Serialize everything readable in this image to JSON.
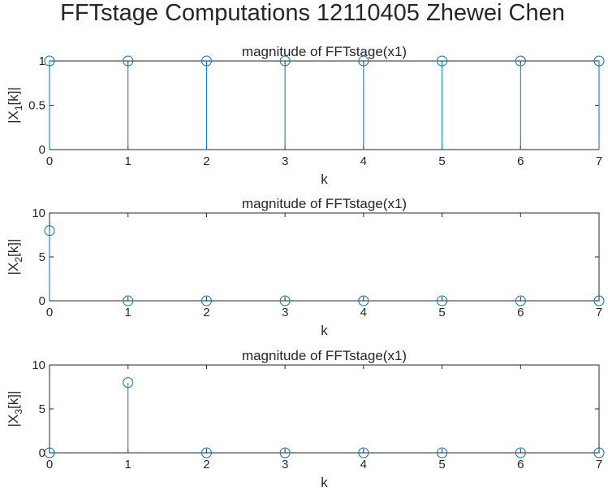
{
  "figure": {
    "title": "FFTstage Computations 12110405 Zhewei Chen"
  },
  "chart_data": [
    {
      "type": "stem",
      "title": "magnitude of FFTstage(x1)",
      "xlabel": "k",
      "ylabel": "|X1[k]|",
      "ylabel_main": "|X",
      "ylabel_sub": "1",
      "ylabel_tail": "[k]|",
      "x": [
        0,
        1,
        2,
        3,
        4,
        5,
        6,
        7
      ],
      "values": [
        1,
        1,
        1,
        1,
        1,
        1,
        1,
        1
      ],
      "xlim": [
        0,
        7
      ],
      "ylim": [
        0,
        1
      ],
      "xticks": [
        "0",
        "1",
        "2",
        "3",
        "4",
        "5",
        "6",
        "7"
      ],
      "yticks": [
        0,
        0.5,
        1
      ],
      "yticklabels": [
        "0",
        "0.5",
        "1"
      ],
      "color": "#0072bd",
      "grid": false
    },
    {
      "type": "stem",
      "title": "magnitude of FFTstage(x1)",
      "xlabel": "k",
      "ylabel": "|X2[k]|",
      "ylabel_main": "|X",
      "ylabel_sub": "2",
      "ylabel_tail": "[k]|",
      "x": [
        0,
        1,
        2,
        3,
        4,
        5,
        6,
        7
      ],
      "values": [
        8,
        0,
        0,
        0,
        0,
        0,
        0,
        0
      ],
      "xlim": [
        0,
        7
      ],
      "ylim": [
        0,
        10
      ],
      "xticks": [
        "0",
        "1",
        "2",
        "3",
        "4",
        "5",
        "6",
        "7"
      ],
      "yticks": [
        0,
        5,
        10
      ],
      "yticklabels": [
        "0",
        "5",
        "10"
      ],
      "color": "#0072bd",
      "grid": false
    },
    {
      "type": "stem",
      "title": "magnitude of FFTstage(x1)",
      "xlabel": "k",
      "ylabel": "|X3[k]|",
      "ylabel_main": "|X",
      "ylabel_sub": "3",
      "ylabel_tail": "[k]|",
      "x": [
        0,
        1,
        2,
        3,
        4,
        5,
        6,
        7
      ],
      "values": [
        0,
        8,
        0,
        0,
        0,
        0,
        0,
        0
      ],
      "xlim": [
        0,
        7
      ],
      "ylim": [
        0,
        10
      ],
      "xticks": [
        "0",
        "1",
        "2",
        "3",
        "4",
        "5",
        "6",
        "7"
      ],
      "yticks": [
        0,
        5,
        10
      ],
      "yticklabels": [
        "0",
        "5",
        "10"
      ],
      "color": "#0072bd",
      "grid": false
    }
  ]
}
